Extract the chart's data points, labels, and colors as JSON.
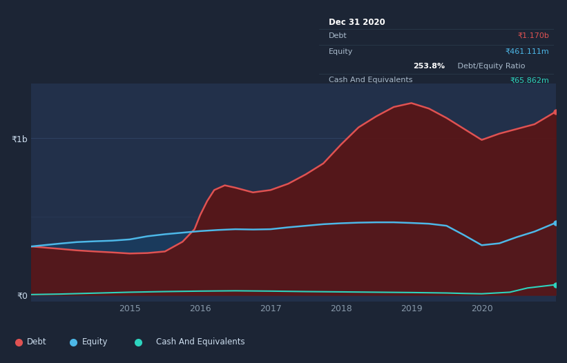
{
  "bg_color": "#1c2535",
  "plot_bg_color": "#22304a",
  "grid_color": "#2e4060",
  "title_box": {
    "date": "Dec 31 2020",
    "debt_label": "Debt",
    "debt_value": "₹1.170b",
    "equity_label": "Equity",
    "equity_value": "₹461.111m",
    "ratio_bold": "253.8%",
    "ratio_rest": " Debt/Equity Ratio",
    "cash_label": "Cash And Equivalents",
    "cash_value": "₹65.862m"
  },
  "ytick_labels": [
    "₹0",
    "₹1b"
  ],
  "xlabel_years": [
    "2015",
    "2016",
    "2017",
    "2018",
    "2019",
    "2020"
  ],
  "debt_color": "#e05252",
  "debt_fill_color": "#5a1515",
  "equity_color": "#4db8e8",
  "equity_fill_color": "#1a3a5c",
  "cash_color": "#2dd4bf",
  "legend_items": [
    "Debt",
    "Equity",
    "Cash And Equivalents"
  ],
  "debt_data": {
    "x": [
      2013.6,
      2014.0,
      2014.25,
      2014.5,
      2014.75,
      2015.0,
      2015.25,
      2015.5,
      2015.75,
      2015.92,
      2016.0,
      2016.1,
      2016.2,
      2016.35,
      2016.5,
      2016.75,
      2017.0,
      2017.25,
      2017.5,
      2017.75,
      2018.0,
      2018.25,
      2018.5,
      2018.75,
      2019.0,
      2019.25,
      2019.5,
      2019.75,
      2020.0,
      2020.25,
      2020.5,
      2020.75,
      2021.05
    ],
    "y": [
      310000000,
      295000000,
      285000000,
      278000000,
      272000000,
      265000000,
      268000000,
      278000000,
      340000000,
      420000000,
      510000000,
      600000000,
      670000000,
      700000000,
      685000000,
      655000000,
      670000000,
      710000000,
      770000000,
      840000000,
      960000000,
      1070000000,
      1140000000,
      1200000000,
      1225000000,
      1190000000,
      1130000000,
      1060000000,
      990000000,
      1030000000,
      1060000000,
      1090000000,
      1170000000
    ]
  },
  "equity_data": {
    "x": [
      2013.6,
      2014.0,
      2014.25,
      2014.5,
      2014.75,
      2015.0,
      2015.25,
      2015.5,
      2015.75,
      2016.0,
      2016.25,
      2016.5,
      2016.75,
      2017.0,
      2017.25,
      2017.5,
      2017.75,
      2018.0,
      2018.25,
      2018.5,
      2018.75,
      2019.0,
      2019.25,
      2019.5,
      2019.75,
      2020.0,
      2020.25,
      2020.5,
      2020.75,
      2021.05
    ],
    "y": [
      310000000,
      328000000,
      338000000,
      343000000,
      347000000,
      355000000,
      375000000,
      388000000,
      398000000,
      408000000,
      415000000,
      420000000,
      418000000,
      420000000,
      432000000,
      442000000,
      452000000,
      458000000,
      462000000,
      464000000,
      464000000,
      460000000,
      455000000,
      442000000,
      382000000,
      318000000,
      330000000,
      370000000,
      405000000,
      461000000
    ]
  },
  "cash_data": {
    "x": [
      2013.6,
      2014.0,
      2014.5,
      2015.0,
      2015.5,
      2016.0,
      2016.5,
      2017.0,
      2017.5,
      2018.0,
      2018.5,
      2019.0,
      2019.5,
      2019.75,
      2020.0,
      2020.4,
      2020.65,
      2021.05
    ],
    "y": [
      3000000,
      6000000,
      12000000,
      18000000,
      22000000,
      25000000,
      27000000,
      25000000,
      22000000,
      20000000,
      18000000,
      16000000,
      13000000,
      10000000,
      8000000,
      18000000,
      45000000,
      65862000
    ]
  }
}
